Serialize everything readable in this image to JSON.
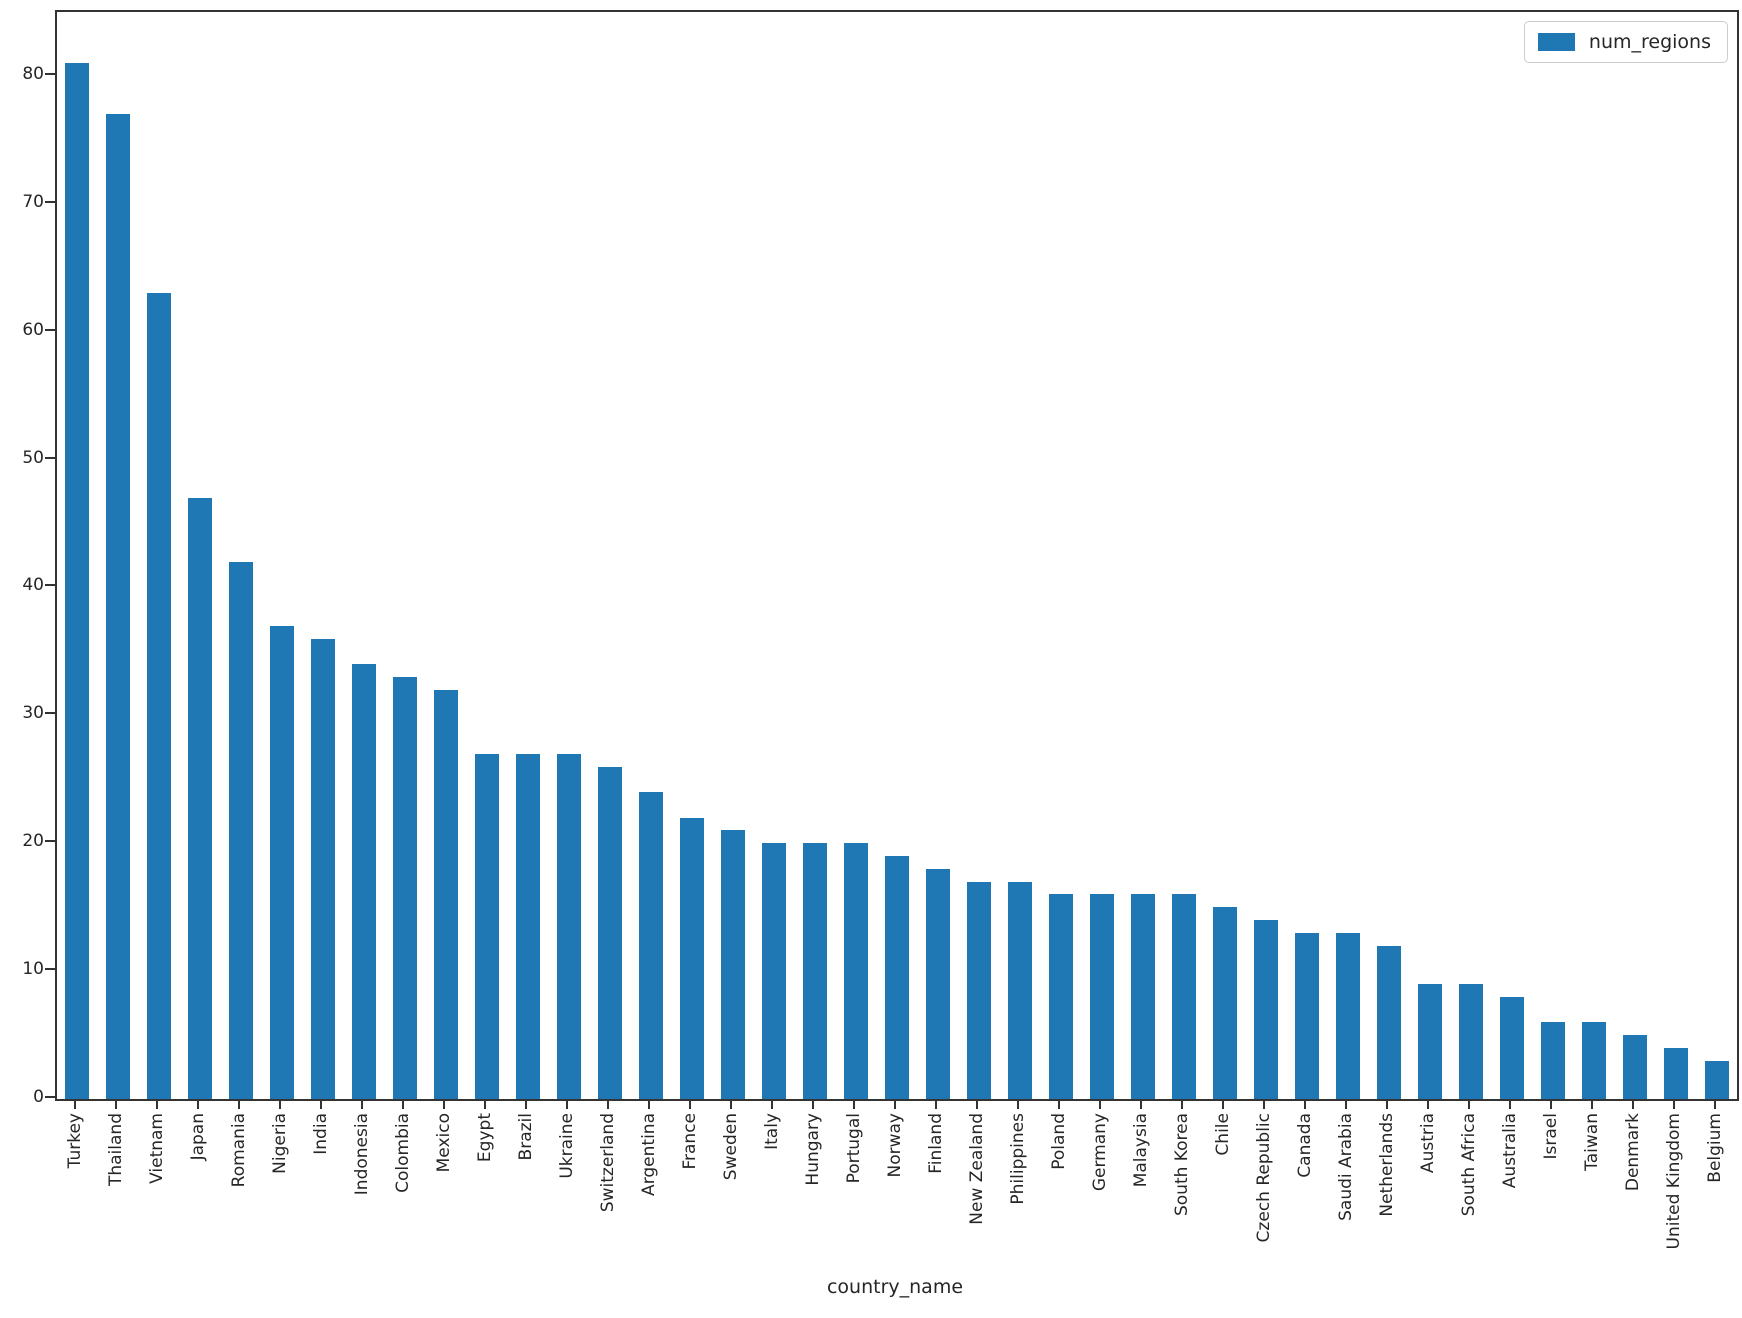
{
  "chart_data": {
    "type": "bar",
    "title": "",
    "xlabel": "country_name",
    "ylabel": "",
    "series_name": "num_regions",
    "legend_position": "upper right",
    "grid": false,
    "bar_color": "#1f77b4",
    "axis_color": "#333333",
    "ylim": [
      0,
      85
    ],
    "yticks": [
      0,
      10,
      20,
      30,
      40,
      50,
      60,
      70,
      80
    ],
    "x_tick_rotation": 90,
    "categories": [
      "Turkey",
      "Thailand",
      "Vietnam",
      "Japan",
      "Romania",
      "Nigeria",
      "India",
      "Indonesia",
      "Colombia",
      "Mexico",
      "Egypt",
      "Brazil",
      "Ukraine",
      "Switzerland",
      "Argentina",
      "France",
      "Sweden",
      "Italy",
      "Hungary",
      "Portugal",
      "Norway",
      "Finland",
      "New Zealand",
      "Philippines",
      "Poland",
      "Germany",
      "Malaysia",
      "South Korea",
      "Chile",
      "Czech Republic",
      "Canada",
      "Saudi Arabia",
      "Netherlands",
      "Austria",
      "South Africa",
      "Australia",
      "Israel",
      "Taiwan",
      "Denmark",
      "United Kingdom",
      "Belgium"
    ],
    "values": [
      81,
      77,
      63,
      47,
      42,
      37,
      36,
      34,
      33,
      32,
      27,
      27,
      27,
      26,
      24,
      22,
      21,
      20,
      20,
      20,
      19,
      18,
      17,
      17,
      16,
      16,
      16,
      16,
      15,
      14,
      13,
      13,
      12,
      9,
      9,
      8,
      6,
      6,
      5,
      4,
      3
    ]
  }
}
